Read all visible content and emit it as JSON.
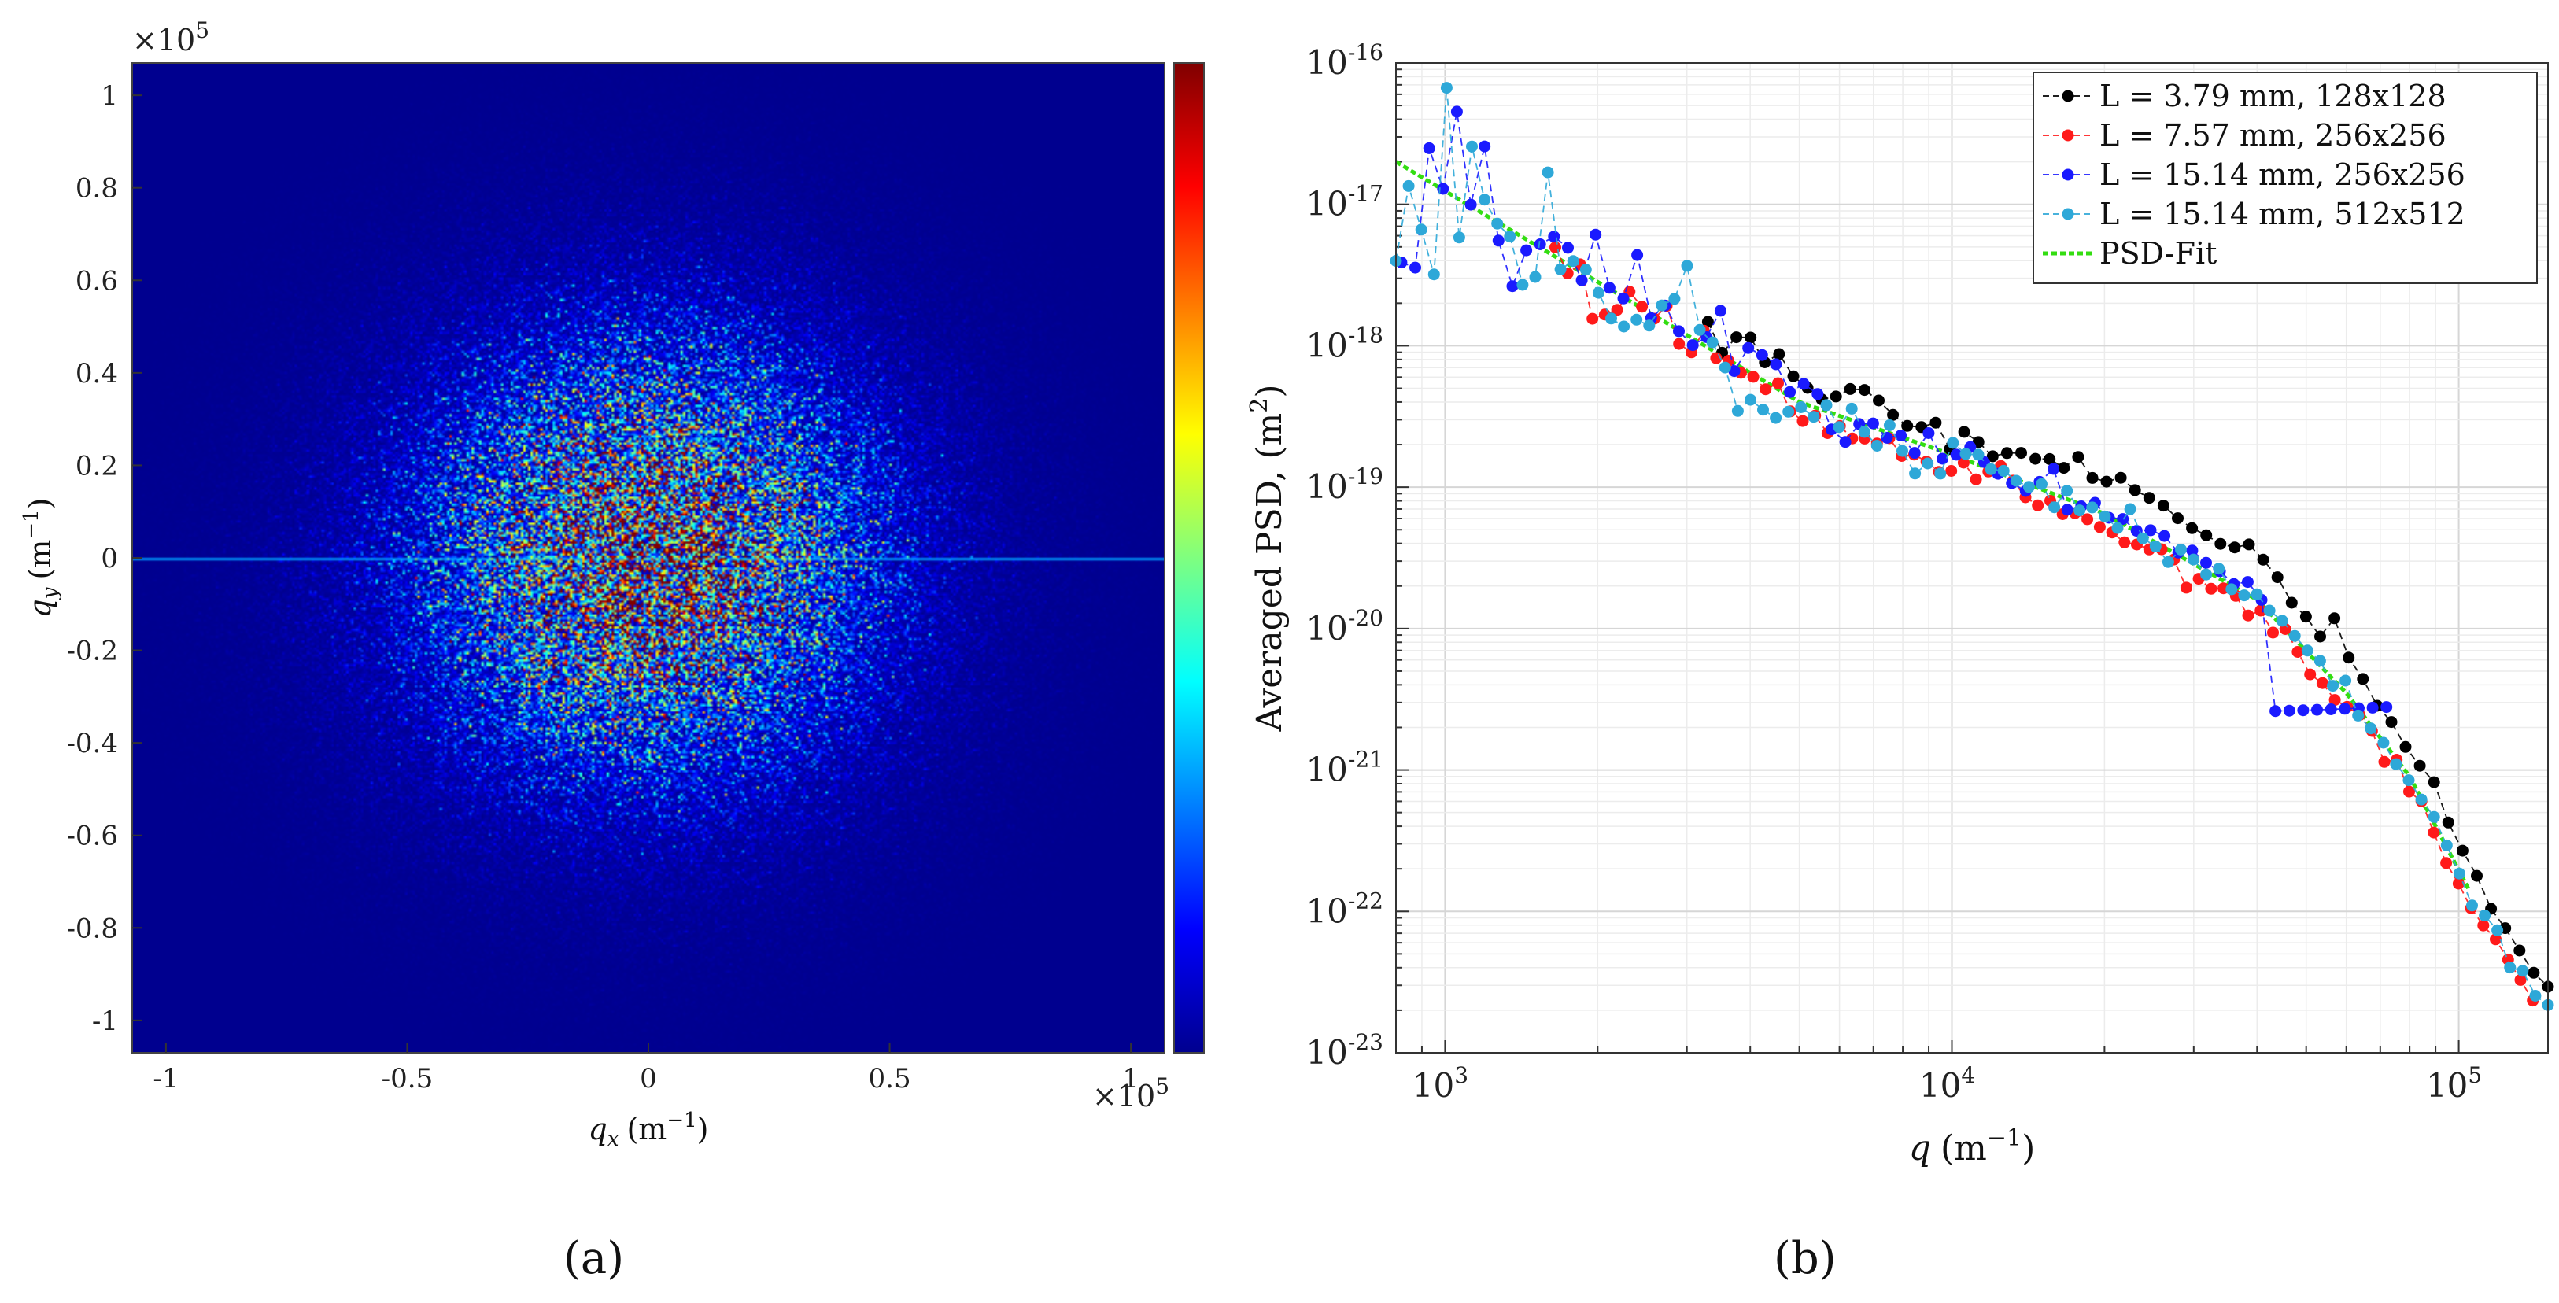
{
  "chart_data": [
    {
      "type": "heatmap",
      "panel_label": "(a)",
      "xlabel_sym": "q",
      "xlabel_sub": "x",
      "xlabel_unit": "(m",
      "ylabel_sym": "q",
      "ylabel_sub": "y",
      "ylabel_unit": "(m",
      "unit_exp": "−1",
      "unit_close": ")",
      "multiplier_base": "×10",
      "multiplier_exp": "5",
      "xlim": [
        -1.07,
        1.07
      ],
      "ylim": [
        -1.07,
        1.07
      ],
      "xticks": [
        -1,
        -0.5,
        0,
        0.5,
        1
      ],
      "xtick_labels": [
        "-1",
        "-0.5",
        "0",
        "0.5",
        "1"
      ],
      "yticks": [
        1,
        0.8,
        0.6,
        0.4,
        0.2,
        0,
        -0.2,
        -0.4,
        -0.6,
        -0.8,
        -1
      ],
      "ytick_labels": [
        "1",
        "0.8",
        "0.6",
        "0.4",
        "0.2",
        "0",
        "-0.2",
        "-0.4",
        "-0.6",
        "-0.8",
        "-1"
      ],
      "colormap": "jet",
      "distribution": "isotropic radial decay, peak at (0,0), thin horizontal streak at qy = 0",
      "radial_scale": 0.33
    },
    {
      "type": "scatter",
      "panel_label": "(b)",
      "xlabel_sym": "q",
      "xlabel_unit": "(m",
      "unit_exp": "−1",
      "unit_close": ")",
      "ylabel_text": "Averaged PSD, (m",
      "ylabel_exp": "2",
      "ylabel_close": ")",
      "xscale": "log",
      "yscale": "log",
      "xlim": [
        800,
        150000
      ],
      "ylim": [
        1e-23,
        1e-16
      ],
      "grid": true,
      "legend_position": "top-right",
      "xtick_labels": [
        {
          "value": 1000,
          "base": "10",
          "exp": "3"
        },
        {
          "value": 10000,
          "base": "10",
          "exp": "4"
        },
        {
          "value": 100000,
          "base": "10",
          "exp": "5"
        }
      ],
      "ytick_labels": [
        {
          "value": 1e-16,
          "base": "10",
          "exp": "-16"
        },
        {
          "value": 1e-17,
          "base": "10",
          "exp": "-17"
        },
        {
          "value": 1e-18,
          "base": "10",
          "exp": "-18"
        },
        {
          "value": 1e-19,
          "base": "10",
          "exp": "-19"
        },
        {
          "value": 1e-20,
          "base": "10",
          "exp": "-20"
        },
        {
          "value": 1e-21,
          "base": "10",
          "exp": "-21"
        },
        {
          "value": 1e-22,
          "base": "10",
          "exp": "-22"
        },
        {
          "value": 1e-23,
          "base": "10",
          "exp": "-23"
        }
      ],
      "series": [
        {
          "name": "L = 3.79 mm, 128x128",
          "color": "#000000",
          "qmin": 3300,
          "qmax": 150000,
          "n": 60,
          "offset": 0.16,
          "noise": 0.3,
          "noise_decay": 2.4,
          "bump_q": 30000
        },
        {
          "name": "L = 7.57 mm, 256x256",
          "color": "#ff1a1a",
          "qmin": 1650,
          "qmax": 140000,
          "n": 80,
          "offset": -0.08,
          "noise": 0.3,
          "noise_decay": 2.2,
          "bump_q": 0
        },
        {
          "name": "L = 15.14 mm, 256x256",
          "color": "#1a1aff",
          "qmin": 820,
          "qmax": 72000,
          "n": 72,
          "offset": 0.04,
          "noise": 0.5,
          "noise_decay": 2.0,
          "bump_q": 0,
          "flatten_q": 42000,
          "flatten_val": 2.6e-21
        },
        {
          "name": "L = 15.14 mm, 512x512",
          "color": "#2ea8d8",
          "qmin": 800,
          "qmax": 150000,
          "n": 92,
          "offset": 0.0,
          "noise": 0.55,
          "noise_decay": 1.8,
          "bump_q": 0
        },
        {
          "name": "PSD-Fit",
          "color": "#33dd11",
          "type": "line",
          "q": [
            800,
            5000,
            10000,
            20000,
            40000,
            60000,
            80000,
            105000
          ],
          "psd": [
            2e-17,
            4e-19,
            1.7e-19,
            6.5e-20,
            1.6e-20,
            3.5e-21,
            9e-22,
            1.4e-22
          ]
        }
      ]
    }
  ]
}
